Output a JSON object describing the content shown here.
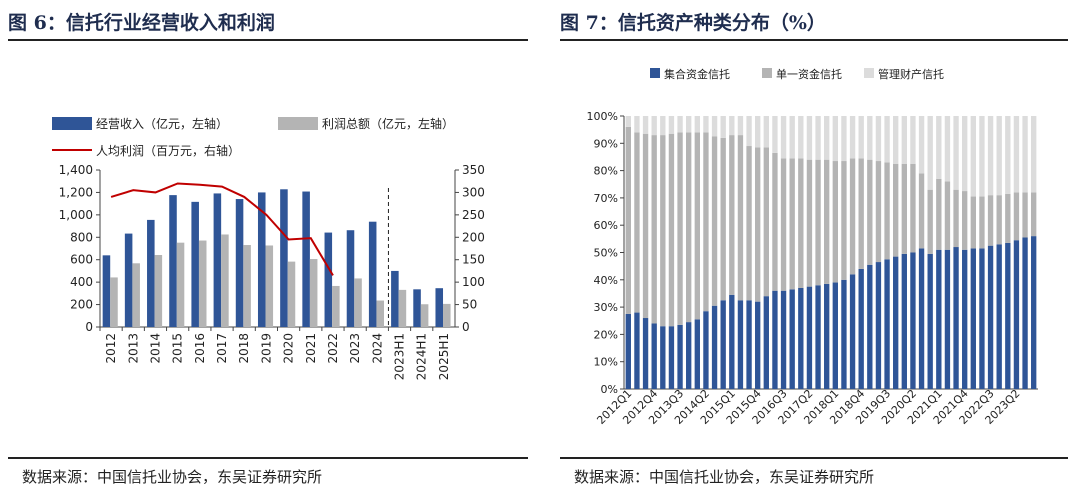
{
  "charts": {
    "left": {
      "title": "图 6：信托行业经营收入和利润",
      "source": "数据来源：中国信托业协会，东吴证券研究所"
    },
    "right": {
      "title": "图 7：信托资产种类分布（%）",
      "source": "数据来源：中国信托业协会，东吴证券研究所"
    }
  },
  "colors": {
    "navy": "#2f5597",
    "gray": "#b4b4b4",
    "light": "#dcdcdc",
    "red": "#c00000"
  },
  "chart_data": [
    {
      "type": "bar",
      "title": "图 6：信托行业经营收入和利润",
      "categories": [
        "2012",
        "2013",
        "2014",
        "2015",
        "2016",
        "2017",
        "2018",
        "2019",
        "2020",
        "2021",
        "2022",
        "2023",
        "2024",
        "2023H1",
        "2024H1",
        "2025H1"
      ],
      "series": [
        {
          "name": "经营收入（亿元，左轴）",
          "axis": "left",
          "kind": "bar",
          "values": [
            639,
            833,
            955,
            1176,
            1116,
            1191,
            1141,
            1200,
            1228,
            1208,
            842,
            863,
            939,
            500,
            336,
            346
          ]
        },
        {
          "name": "利润总额（亿元，左轴）",
          "axis": "left",
          "kind": "bar",
          "values": [
            442,
            568,
            642,
            752,
            771,
            825,
            731,
            727,
            583,
            606,
            366,
            433,
            236,
            331,
            203,
            206
          ]
        },
        {
          "name": "人均利润（百万元，右轴）",
          "axis": "right",
          "kind": "line",
          "values": [
            290,
            305,
            300,
            320,
            317,
            313,
            290,
            250,
            195,
            198,
            115,
            null,
            null,
            null,
            null,
            null
          ]
        }
      ],
      "left_axis": {
        "ylim": [
          0,
          1400
        ],
        "ticks": [
          "0",
          "200",
          "400",
          "600",
          "800",
          "1,000",
          "1,200",
          "1,400"
        ]
      },
      "right_axis": {
        "ylim": [
          0,
          350
        ],
        "ticks": [
          "0",
          "50",
          "100",
          "150",
          "200",
          "250",
          "300",
          "350"
        ]
      },
      "divider_after_category": "2024"
    },
    {
      "type": "bar",
      "stacked": true,
      "title": "图 7：信托资产种类分布（%）",
      "categories": [
        "2012Q1",
        "2012Q2",
        "2012Q3",
        "2012Q4",
        "2013Q1",
        "2013Q2",
        "2013Q3",
        "2013Q4",
        "2014Q1",
        "2014Q2",
        "2014Q3",
        "2014Q4",
        "2015Q1",
        "2015Q2",
        "2015Q3",
        "2015Q4",
        "2016Q1",
        "2016Q2",
        "2016Q3",
        "2016Q4",
        "2017Q1",
        "2017Q2",
        "2017Q3",
        "2017Q4",
        "2018Q1",
        "2018Q2",
        "2018Q3",
        "2018Q4",
        "2019Q1",
        "2019Q2",
        "2019Q3",
        "2019Q4",
        "2020Q1",
        "2020Q2",
        "2020Q3",
        "2020Q4",
        "2021Q1",
        "2021Q2",
        "2021Q3",
        "2021Q4",
        "2022Q1",
        "2022Q2",
        "2022Q3",
        "2022Q4",
        "2023Q1",
        "2023Q2",
        "2023Q3",
        "2023Q4"
      ],
      "x_tick_labels": [
        "2012Q1",
        "2012Q4",
        "2013Q3",
        "2014Q2",
        "2015Q1",
        "2015Q4",
        "2016Q3",
        "2017Q2",
        "2018Q1",
        "2018Q4",
        "2019Q3",
        "2020Q2",
        "2021Q1",
        "2021Q4",
        "2022Q3",
        "2023Q2"
      ],
      "series": [
        {
          "name": "集合资金信托",
          "values": [
            27.5,
            28,
            26,
            24,
            23,
            23,
            23.5,
            24.5,
            25.5,
            28.5,
            30.5,
            32.5,
            34.5,
            32.5,
            32.5,
            32,
            34,
            36,
            36,
            36.5,
            37,
            37.5,
            38,
            38.5,
            39,
            40,
            42,
            44,
            45.5,
            46.5,
            47.5,
            48.5,
            49.5,
            50,
            51.5,
            49.5,
            51,
            51,
            52,
            51,
            51.5,
            51.5,
            52.5,
            53,
            53.5,
            54.5,
            55.5,
            56
          ]
        },
        {
          "name": "单一资金信托",
          "values": [
            68.5,
            66,
            67.5,
            69,
            70,
            70.5,
            70.5,
            69.5,
            68.5,
            65.5,
            62,
            59.5,
            58.5,
            60.5,
            56.5,
            56.5,
            54.5,
            50.5,
            48.5,
            48,
            47.5,
            46.5,
            46,
            45.5,
            44.5,
            43.5,
            42.5,
            40.5,
            38.5,
            37,
            35.5,
            34,
            33,
            32.5,
            27.5,
            23.5,
            26,
            25,
            21,
            21.5,
            19,
            19,
            18.5,
            18,
            18,
            17.5,
            16.5,
            16
          ]
        },
        {
          "name": "管理财产信托",
          "values": [
            4,
            6,
            6.5,
            7,
            7,
            6.5,
            6,
            6,
            6,
            6,
            7.5,
            8,
            7,
            7,
            11,
            11.5,
            11.5,
            13.5,
            15.5,
            15.5,
            15.5,
            16,
            16,
            16,
            16.5,
            16.5,
            15.5,
            15.5,
            16,
            16.5,
            17,
            17.5,
            17.5,
            17.5,
            21,
            27,
            23,
            24,
            27,
            27.5,
            29.5,
            29.5,
            29,
            29,
            28.5,
            28,
            28,
            28
          ]
        }
      ],
      "ylim": [
        0,
        100
      ],
      "y_ticks": [
        "0%",
        "10%",
        "20%",
        "30%",
        "40%",
        "50%",
        "60%",
        "70%",
        "80%",
        "90%",
        "100%"
      ]
    }
  ]
}
